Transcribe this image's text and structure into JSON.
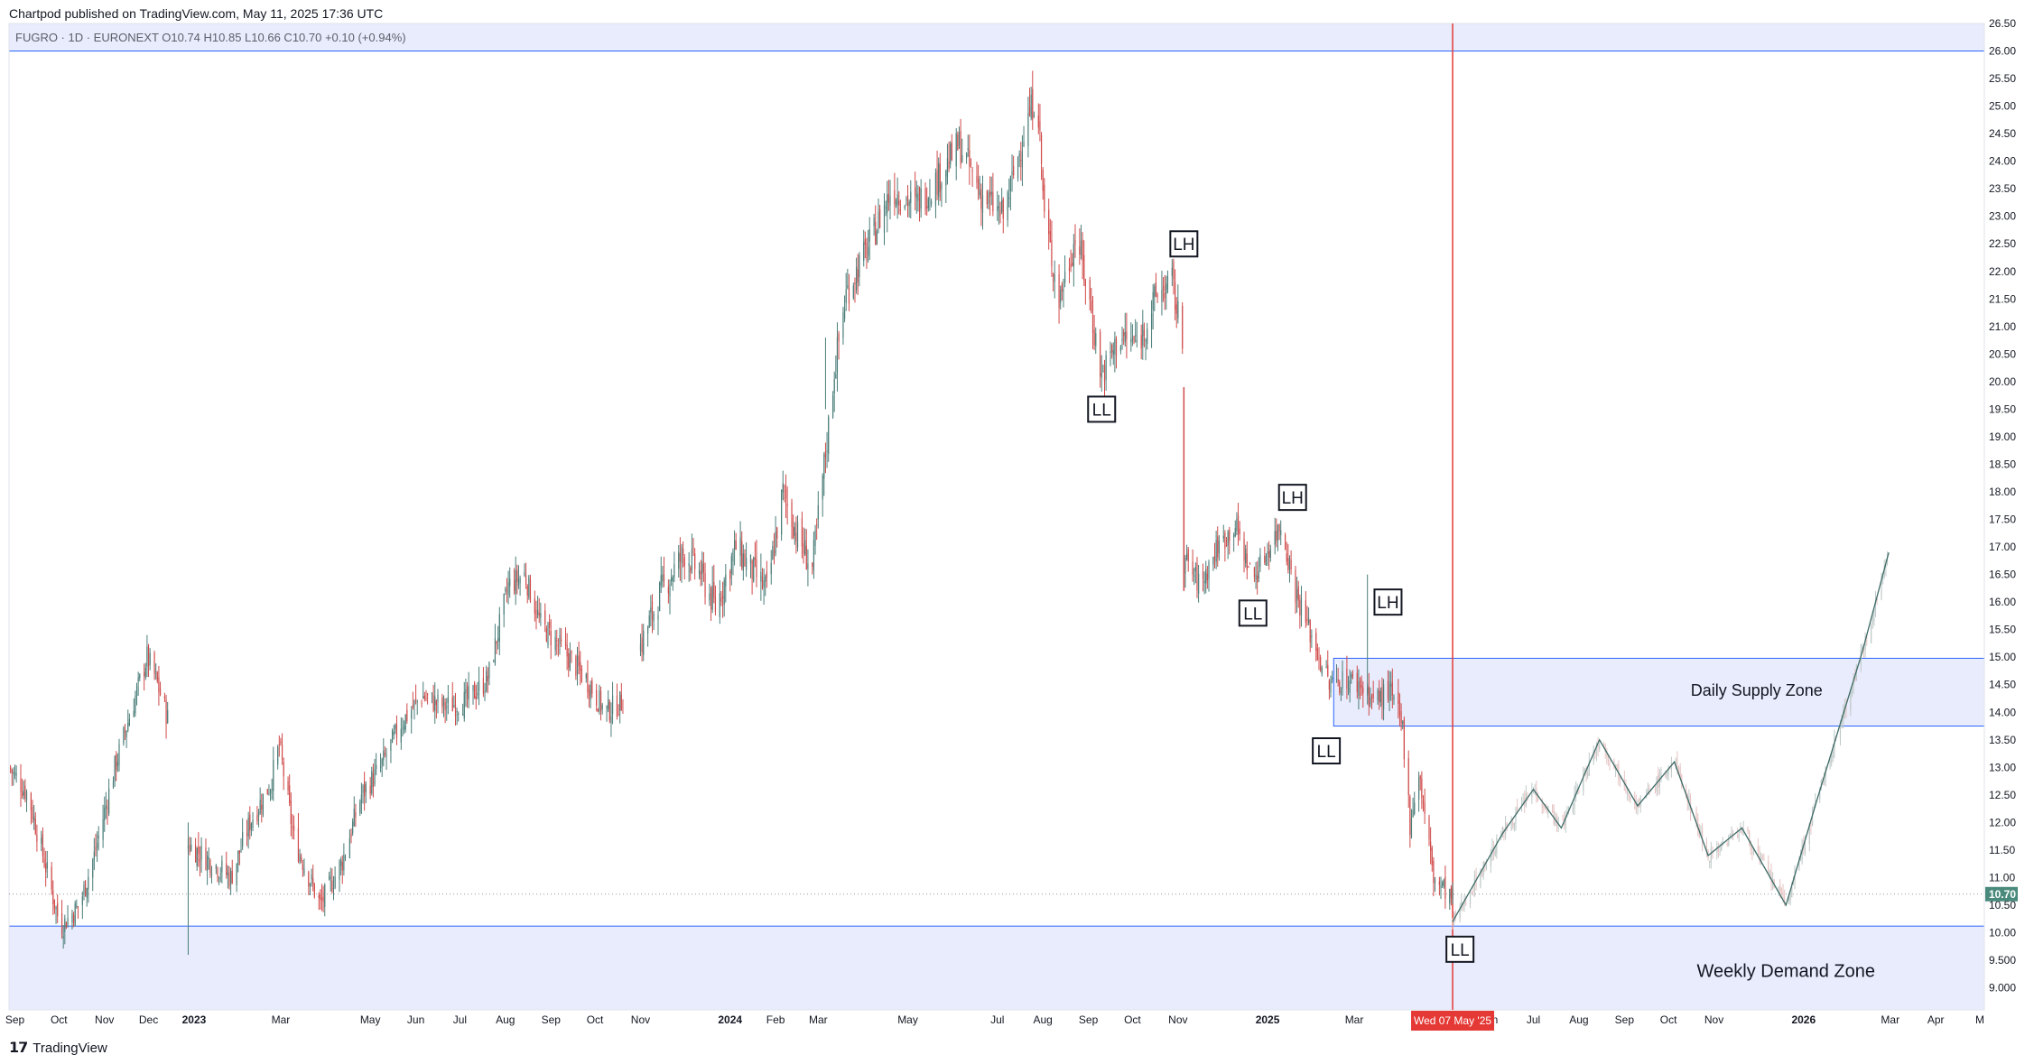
{
  "header": {
    "published": "Chartpod published on TradingView.com, May 11, 2025 17:36 UTC",
    "symbol_line": "FUGRO · 1D · EURONEXT  O10.74  H10.85  L10.66  C10.70  +0.10 (+0.94%)"
  },
  "footer": {
    "brand": "TradingView"
  },
  "colors": {
    "zone_fill": "#e8ecfc",
    "zone_border": "#2962ff",
    "cursor_line": "#e53935",
    "up_candle": "#4a7d78",
    "down_candle": "#d04a4a",
    "projection_line": "#3d6b66",
    "projection_candle": "#bfc9c8"
  },
  "chart_data": {
    "type": "candlestick",
    "y_axis": {
      "min": 8.6,
      "max": 26.5,
      "ticks": [
        "26.50",
        "26.00",
        "25.50",
        "25.00",
        "24.50",
        "24.00",
        "23.50",
        "23.00",
        "22.50",
        "22.00",
        "21.50",
        "21.00",
        "20.50",
        "20.00",
        "19.50",
        "19.00",
        "18.50",
        "18.00",
        "17.50",
        "17.00",
        "16.50",
        "16.00",
        "15.50",
        "15.00",
        "14.50",
        "14.00",
        "13.50",
        "13.00",
        "12.50",
        "12.00",
        "11.50",
        "11.00",
        "10.50",
        "10.00",
        "9.500",
        "9.000"
      ],
      "last_price": "10.70"
    },
    "x_axis": {
      "labels": [
        {
          "label": "Sep",
          "date": "2022-09-01",
          "bold": false
        },
        {
          "label": "Oct",
          "date": "2022-10-01",
          "bold": false
        },
        {
          "label": "Nov",
          "date": "2022-11-01",
          "bold": false
        },
        {
          "label": "Dec",
          "date": "2022-12-01",
          "bold": false
        },
        {
          "label": "2023",
          "date": "2023-01-01",
          "bold": true
        },
        {
          "label": "Mar",
          "date": "2023-03-01",
          "bold": false
        },
        {
          "label": "May",
          "date": "2023-05-01",
          "bold": false
        },
        {
          "label": "Jun",
          "date": "2023-06-01",
          "bold": false
        },
        {
          "label": "Jul",
          "date": "2023-07-01",
          "bold": false
        },
        {
          "label": "Aug",
          "date": "2023-08-01",
          "bold": false
        },
        {
          "label": "Sep",
          "date": "2023-09-01",
          "bold": false
        },
        {
          "label": "Oct",
          "date": "2023-10-01",
          "bold": false
        },
        {
          "label": "Nov",
          "date": "2023-11-01",
          "bold": false
        },
        {
          "label": "2024",
          "date": "2024-01-01",
          "bold": true
        },
        {
          "label": "Feb",
          "date": "2024-02-01",
          "bold": false
        },
        {
          "label": "Mar",
          "date": "2024-03-01",
          "bold": false
        },
        {
          "label": "May",
          "date": "2024-05-01",
          "bold": false
        },
        {
          "label": "Jul",
          "date": "2024-07-01",
          "bold": false
        },
        {
          "label": "Aug",
          "date": "2024-08-01",
          "bold": false
        },
        {
          "label": "Sep",
          "date": "2024-09-01",
          "bold": false
        },
        {
          "label": "Oct",
          "date": "2024-10-01",
          "bold": false
        },
        {
          "label": "Nov",
          "date": "2024-11-01",
          "bold": false
        },
        {
          "label": "2025",
          "date": "2025-01-01",
          "bold": true
        },
        {
          "label": "Mar",
          "date": "2025-03-01",
          "bold": false
        },
        {
          "label": "Jun",
          "date": "2025-06-01",
          "bold": false
        },
        {
          "label": "Jul",
          "date": "2025-07-01",
          "bold": false
        },
        {
          "label": "Aug",
          "date": "2025-08-01",
          "bold": false
        },
        {
          "label": "Sep",
          "date": "2025-09-01",
          "bold": false
        },
        {
          "label": "Oct",
          "date": "2025-10-01",
          "bold": false
        },
        {
          "label": "Nov",
          "date": "2025-11-01",
          "bold": false
        },
        {
          "label": "2026",
          "date": "2026-01-01",
          "bold": true
        },
        {
          "label": "Mar",
          "date": "2026-03-01",
          "bold": false
        },
        {
          "label": "Apr",
          "date": "2026-04-01",
          "bold": false
        },
        {
          "label": "M",
          "date": "2026-05-01",
          "bold": false
        }
      ],
      "cursor": {
        "label": "Wed 07 May '25",
        "date": "2025-05-07"
      }
    },
    "price_path": [
      [
        "2022-08-28",
        13.0
      ],
      [
        "2022-09-10",
        12.5
      ],
      [
        "2022-09-22",
        11.2
      ],
      [
        "2022-10-02",
        10.1
      ],
      [
        "2022-10-15",
        10.5
      ],
      [
        "2022-10-25",
        11.4
      ],
      [
        "2022-11-08",
        13.0
      ],
      [
        "2022-11-20",
        14.1
      ],
      [
        "2022-11-30",
        15.0
      ],
      [
        "2022-12-06",
        14.6
      ],
      [
        "2022-12-14",
        13.9
      ],
      [
        "2022-12-28",
        11.6
      ],
      [
        "2023-01-12",
        11.3
      ],
      [
        "2023-01-26",
        11.0
      ],
      [
        "2023-02-08",
        12.0
      ],
      [
        "2023-02-22",
        12.7
      ],
      [
        "2023-02-28",
        13.4
      ],
      [
        "2023-03-10",
        11.7
      ],
      [
        "2023-03-28",
        10.5
      ],
      [
        "2023-04-12",
        11.3
      ],
      [
        "2023-04-25",
        12.5
      ],
      [
        "2023-05-08",
        13.0
      ],
      [
        "2023-05-22",
        13.8
      ],
      [
        "2023-06-05",
        14.3
      ],
      [
        "2023-06-20",
        14.1
      ],
      [
        "2023-07-05",
        14.2
      ],
      [
        "2023-07-20",
        14.6
      ],
      [
        "2023-08-03",
        16.3
      ],
      [
        "2023-08-14",
        16.5
      ],
      [
        "2023-08-25",
        15.6
      ],
      [
        "2023-09-10",
        15.1
      ],
      [
        "2023-09-25",
        14.6
      ],
      [
        "2023-10-08",
        14.0
      ],
      [
        "2023-10-20",
        14.2
      ],
      [
        "2023-11-01",
        15.2
      ],
      [
        "2023-11-15",
        16.2
      ],
      [
        "2023-12-01",
        16.9
      ],
      [
        "2023-12-12",
        16.5
      ],
      [
        "2023-12-22",
        15.9
      ],
      [
        "2024-01-05",
        17.0
      ],
      [
        "2024-01-15",
        16.6
      ],
      [
        "2024-01-26",
        16.2
      ],
      [
        "2024-02-06",
        18.0
      ],
      [
        "2024-02-16",
        17.2
      ],
      [
        "2024-02-26",
        16.6
      ],
      [
        "2024-03-06",
        18.7
      ],
      [
        "2024-03-12",
        20.2
      ],
      [
        "2024-03-20",
        21.6
      ],
      [
        "2024-04-05",
        22.5
      ],
      [
        "2024-04-20",
        23.5
      ],
      [
        "2024-05-06",
        23.2
      ],
      [
        "2024-05-22",
        23.7
      ],
      [
        "2024-06-05",
        24.3
      ],
      [
        "2024-06-20",
        23.4
      ],
      [
        "2024-07-05",
        23.0
      ],
      [
        "2024-07-20",
        24.6
      ],
      [
        "2024-07-28",
        25.3
      ],
      [
        "2024-08-02",
        23.0
      ],
      [
        "2024-08-12",
        21.5
      ],
      [
        "2024-08-24",
        22.7
      ],
      [
        "2024-09-02",
        21.4
      ],
      [
        "2024-09-10",
        20.1
      ],
      [
        "2024-09-22",
        20.8
      ],
      [
        "2024-10-05",
        20.7
      ],
      [
        "2024-10-18",
        21.6
      ],
      [
        "2024-10-28",
        21.8
      ],
      [
        "2024-11-04",
        20.7
      ],
      [
        "2024-11-05",
        16.8
      ],
      [
        "2024-11-16",
        16.3
      ],
      [
        "2024-11-28",
        17.0
      ],
      [
        "2024-12-10",
        17.4
      ],
      [
        "2024-12-22",
        16.4
      ],
      [
        "2025-01-02",
        17.0
      ],
      [
        "2025-01-10",
        17.4
      ],
      [
        "2025-01-20",
        16.2
      ],
      [
        "2025-02-01",
        15.3
      ],
      [
        "2025-02-12",
        14.5
      ],
      [
        "2025-02-22",
        14.6
      ],
      [
        "2025-03-05",
        14.5
      ],
      [
        "2025-03-15",
        14.2
      ],
      [
        "2025-03-25",
        14.4
      ],
      [
        "2025-04-03",
        13.7
      ],
      [
        "2025-04-08",
        12.0
      ],
      [
        "2025-04-14",
        12.9
      ],
      [
        "2025-04-24",
        11.0
      ],
      [
        "2025-05-07",
        10.6
      ]
    ],
    "projection_path": [
      [
        "2025-05-07",
        10.2
      ],
      [
        "2025-06-10",
        11.8
      ],
      [
        "2025-07-01",
        12.6
      ],
      [
        "2025-07-20",
        11.9
      ],
      [
        "2025-08-15",
        13.5
      ],
      [
        "2025-09-10",
        12.3
      ],
      [
        "2025-10-05",
        13.1
      ],
      [
        "2025-10-28",
        11.4
      ],
      [
        "2025-11-20",
        11.9
      ],
      [
        "2025-12-20",
        10.5
      ],
      [
        "2026-01-10",
        12.4
      ],
      [
        "2026-02-10",
        15.1
      ],
      [
        "2026-02-28",
        16.9
      ]
    ],
    "zones": [
      {
        "name": "Daily Supply Zone",
        "label": "Daily Supply Zone",
        "y_min": 13.75,
        "y_max": 14.98,
        "x_start": "2025-02-15"
      },
      {
        "name": "Weekly Demand Zone",
        "label": "Weekly Demand Zone",
        "y_min": 8.6,
        "y_max": 10.12,
        "x_start": "2022-08-28"
      },
      {
        "name": "Top Zone",
        "label": "",
        "y_min": 26.0,
        "y_max": 26.5,
        "x_start": "2022-08-28"
      }
    ],
    "annotations": [
      {
        "label": "LH",
        "date": "2024-11-05",
        "price": 22.5
      },
      {
        "label": "LL",
        "date": "2024-09-10",
        "price": 19.5
      },
      {
        "label": "LH",
        "date": "2025-01-18",
        "price": 17.9
      },
      {
        "label": "LL",
        "date": "2024-12-22",
        "price": 15.8
      },
      {
        "label": "LH",
        "date": "2025-03-24",
        "price": 16.0
      },
      {
        "label": "LL",
        "date": "2025-02-10",
        "price": 13.3
      },
      {
        "label": "LL",
        "date": "2025-05-12",
        "price": 9.7
      }
    ],
    "zone_labels": [
      {
        "label": "Daily Supply Zone",
        "date": "2025-11-30",
        "price": 14.3
      },
      {
        "label": "Weekly Demand Zone",
        "date": "2025-12-20",
        "price": 9.2
      }
    ]
  }
}
